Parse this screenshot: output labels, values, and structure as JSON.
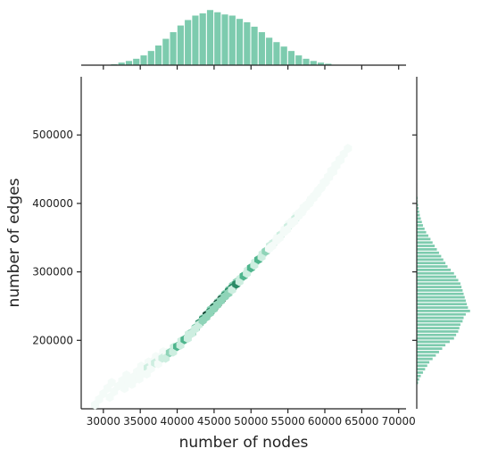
{
  "chart_data": {
    "type": "hexbin",
    "xlabel": "number of nodes",
    "ylabel": "number of edges",
    "xlim": [
      27000,
      71000
    ],
    "ylim": [
      100000,
      585000
    ],
    "x_ticks": [
      30000,
      35000,
      40000,
      45000,
      50000,
      55000,
      60000,
      65000,
      70000
    ],
    "y_ticks": [
      200000,
      300000,
      400000,
      500000
    ],
    "x_tick_labels": [
      "30000",
      "35000",
      "40000",
      "45000",
      "50000",
      "55000",
      "60000",
      "65000",
      "70000"
    ],
    "y_tick_labels": [
      "200000",
      "300000",
      "400000",
      "500000"
    ],
    "color": "#66c2a0",
    "hexbin_colormap": [
      "#f4fbf8",
      "#cdeee0",
      "#8fd4b8",
      "#4fb58d",
      "#2a8a66",
      "#0b3d2c"
    ],
    "trend": {
      "x": [
        30000,
        35000,
        40000,
        45000,
        50000,
        55000,
        60000
      ],
      "y": [
        122000,
        158000,
        198000,
        248000,
        300000,
        362000,
        430000
      ]
    },
    "hexbin": [
      {
        "x": 30000,
        "y": 122000,
        "density": 0.05
      },
      {
        "x": 32000,
        "y": 133000,
        "density": 0.08
      },
      {
        "x": 34000,
        "y": 146000,
        "density": 0.1
      },
      {
        "x": 35000,
        "y": 152000,
        "density": 0.15
      },
      {
        "x": 36000,
        "y": 160000,
        "density": 0.22
      },
      {
        "x": 37000,
        "y": 167000,
        "density": 0.28
      },
      {
        "x": 38000,
        "y": 174000,
        "density": 0.3
      },
      {
        "x": 39000,
        "y": 182000,
        "density": 0.38
      },
      {
        "x": 40000,
        "y": 191000,
        "density": 0.5
      },
      {
        "x": 41000,
        "y": 201000,
        "density": 0.55
      },
      {
        "x": 42000,
        "y": 211000,
        "density": 0.65
      },
      {
        "x": 42500,
        "y": 218000,
        "density": 0.6
      },
      {
        "x": 43000,
        "y": 225000,
        "density": 0.7
      },
      {
        "x": 43500,
        "y": 231000,
        "density": 0.72
      },
      {
        "x": 44000,
        "y": 237000,
        "density": 0.85
      },
      {
        "x": 44500,
        "y": 242000,
        "density": 0.78
      },
      {
        "x": 45000,
        "y": 248000,
        "density": 0.9
      },
      {
        "x": 45500,
        "y": 254000,
        "density": 0.88
      },
      {
        "x": 46000,
        "y": 260000,
        "density": 0.95
      },
      {
        "x": 46500,
        "y": 266000,
        "density": 0.8
      },
      {
        "x": 47000,
        "y": 272000,
        "density": 0.82
      },
      {
        "x": 47500,
        "y": 277000,
        "density": 0.75
      },
      {
        "x": 48000,
        "y": 282000,
        "density": 0.7
      },
      {
        "x": 49000,
        "y": 294000,
        "density": 0.65
      },
      {
        "x": 50000,
        "y": 306000,
        "density": 0.55
      },
      {
        "x": 51000,
        "y": 318000,
        "density": 0.5
      },
      {
        "x": 52000,
        "y": 330000,
        "density": 0.4
      },
      {
        "x": 53000,
        "y": 342000,
        "density": 0.32
      },
      {
        "x": 54000,
        "y": 354000,
        "density": 0.28
      },
      {
        "x": 55000,
        "y": 366000,
        "density": 0.22
      },
      {
        "x": 56000,
        "y": 378000,
        "density": 0.18
      },
      {
        "x": 57000,
        "y": 390000,
        "density": 0.12
      },
      {
        "x": 58000,
        "y": 403000,
        "density": 0.09
      },
      {
        "x": 59000,
        "y": 416000,
        "density": 0.07
      },
      {
        "x": 60000,
        "y": 430000,
        "density": 0.05
      },
      {
        "x": 61000,
        "y": 447000,
        "density": 0.04
      },
      {
        "x": 62000,
        "y": 464000,
        "density": 0.03
      }
    ],
    "marginal_x": {
      "bin_edges": [
        31000,
        32000,
        33000,
        34000,
        35000,
        36000,
        37000,
        38000,
        39000,
        40000,
        41000,
        42000,
        43000,
        44000,
        45000,
        46000,
        47000,
        48000,
        49000,
        50000,
        51000,
        52000,
        53000,
        54000,
        55000,
        56000,
        57000,
        58000,
        59000,
        60000,
        61000,
        62000
      ],
      "counts": [
        2,
        5,
        8,
        12,
        18,
        26,
        36,
        48,
        60,
        72,
        82,
        90,
        94,
        100,
        96,
        92,
        90,
        84,
        78,
        70,
        60,
        50,
        42,
        34,
        26,
        18,
        12,
        8,
        5,
        3,
        1
      ]
    },
    "marginal_y": {
      "bin_edges": [
        135000,
        140000,
        145000,
        150000,
        155000,
        160000,
        165000,
        170000,
        175000,
        180000,
        185000,
        190000,
        195000,
        200000,
        205000,
        210000,
        215000,
        220000,
        225000,
        230000,
        235000,
        240000,
        245000,
        250000,
        255000,
        260000,
        265000,
        270000,
        275000,
        280000,
        285000,
        290000,
        295000,
        300000,
        305000,
        310000,
        315000,
        320000,
        325000,
        330000,
        335000,
        340000,
        345000,
        350000,
        355000,
        360000,
        365000,
        370000,
        375000,
        380000,
        385000,
        390000,
        395000,
        400000,
        405000,
        410000,
        415000,
        420000,
        425000,
        430000
      ],
      "counts": [
        3,
        5,
        8,
        12,
        16,
        20,
        24,
        30,
        36,
        42,
        48,
        54,
        62,
        70,
        74,
        78,
        80,
        82,
        86,
        88,
        92,
        100,
        96,
        94,
        92,
        90,
        88,
        86,
        84,
        82,
        78,
        74,
        70,
        64,
        58,
        54,
        50,
        46,
        42,
        38,
        34,
        30,
        26,
        22,
        18,
        15,
        12,
        10,
        8,
        6,
        5,
        4,
        3,
        2,
        2,
        1,
        1,
        1,
        1
      ]
    },
    "grid": false
  }
}
